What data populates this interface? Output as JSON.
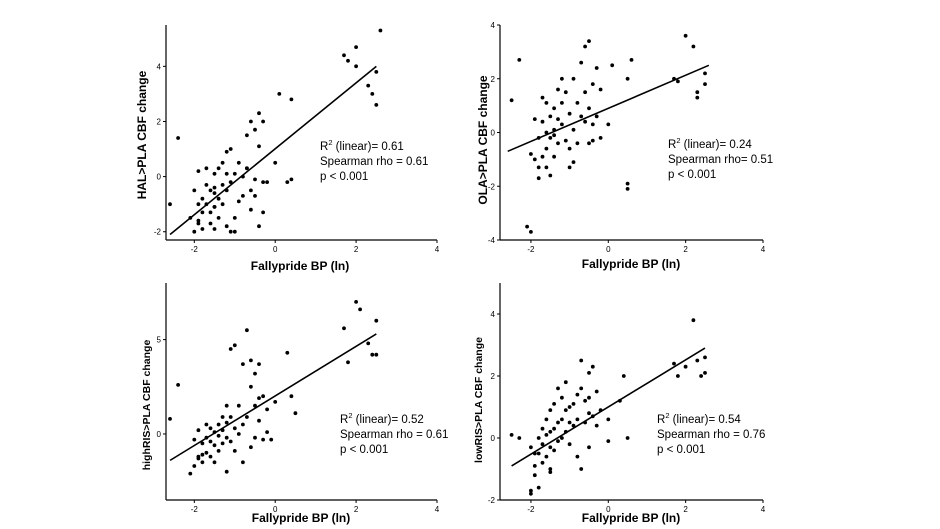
{
  "chart_data": [
    {
      "type": "scatter",
      "id": "hal",
      "xlabel": "Fallypride BP (ln)",
      "ylabel": "HAL>PLA CBF change",
      "xlim": [
        -2.7,
        4
      ],
      "ylim": [
        -2.3,
        5.5
      ],
      "xticks": [
        -2,
        0,
        2,
        4
      ],
      "yticks": [
        -2,
        0,
        2,
        4
      ],
      "stats": {
        "r2_label": "R",
        "r2_exp": "2",
        "r2_rest": " (linear)= 0.61",
        "rho": "Spearman rho = 0.61",
        "p": "p < 0.001"
      },
      "fit": [
        [
          -2.6,
          -2.1
        ],
        [
          2.5,
          4.0
        ]
      ],
      "x": [
        -2.6,
        -2.4,
        -2.1,
        -2.0,
        -2.0,
        -1.9,
        -1.9,
        -1.9,
        -1.8,
        -1.8,
        -1.8,
        -1.7,
        -1.7,
        -1.7,
        -1.6,
        -1.6,
        -1.6,
        -1.5,
        -1.5,
        -1.5,
        -1.5,
        -1.4,
        -1.4,
        -1.4,
        -1.3,
        -1.3,
        -1.3,
        -1.2,
        -1.2,
        -1.2,
        -1.2,
        -1.1,
        -1.1,
        -1.0,
        -1.0,
        -1.0,
        -0.9,
        -0.9,
        -0.8,
        -0.8,
        -0.7,
        -0.7,
        -0.6,
        -0.6,
        -0.6,
        -0.5,
        -0.5,
        -0.5,
        -0.4,
        -0.4,
        -0.4,
        -0.3,
        -0.3,
        -0.2,
        0.0,
        0.1,
        0.3,
        0.4,
        0.4,
        1.7,
        1.8,
        2.0,
        2.0,
        2.3,
        2.4,
        2.5,
        2.5,
        2.6,
        -1.5,
        -1.9,
        -0.7,
        -1.5,
        -1.1,
        -0.3
      ],
      "y": [
        -1.0,
        1.4,
        -1.5,
        -2.0,
        -0.5,
        0.2,
        -1.0,
        -1.7,
        -0.8,
        -1.3,
        -1.9,
        -0.3,
        -1.0,
        0.3,
        -0.5,
        -1.3,
        -1.7,
        0.1,
        -0.6,
        -1.1,
        -1.9,
        0.3,
        -0.8,
        -1.5,
        0.5,
        -0.3,
        -1.0,
        0.9,
        0.1,
        -0.5,
        -1.8,
        1.0,
        -0.2,
        0.1,
        -1.5,
        -2.0,
        0.5,
        -0.9,
        0.0,
        -0.7,
        1.5,
        0.3,
        -0.5,
        -1.2,
        2.0,
        1.7,
        -0.1,
        -0.7,
        2.3,
        1.1,
        -1.8,
        2.0,
        -0.2,
        -0.2,
        0.5,
        3.0,
        -0.2,
        2.8,
        -0.1,
        4.4,
        4.2,
        4.0,
        4.7,
        3.3,
        3.0,
        3.8,
        2.6,
        5.3,
        -1.1,
        -1.6,
        0.3,
        -0.4,
        -2.0,
        -1.3
      ]
    },
    {
      "type": "scatter",
      "id": "ola",
      "xlabel": "Fallypride BP (ln)",
      "ylabel": "OLA>PLA CBF change",
      "xlim": [
        -2.8,
        4
      ],
      "ylim": [
        -4,
        4
      ],
      "xticks": [
        -2,
        0,
        2,
        4
      ],
      "yticks": [
        -4,
        -2,
        0,
        2,
        4
      ],
      "stats": {
        "r2_label": "R",
        "r2_exp": "2",
        "r2_rest": " (linear)= 0.24",
        "rho": "Spearman rho= 0.51",
        "p": "p < 0.001"
      },
      "fit": [
        [
          -2.6,
          -0.7
        ],
        [
          2.6,
          2.5
        ]
      ],
      "x": [
        -2.5,
        -2.3,
        -2.1,
        -2.0,
        -2.0,
        -1.9,
        -1.9,
        -1.8,
        -1.8,
        -1.8,
        -1.7,
        -1.7,
        -1.7,
        -1.6,
        -1.6,
        -1.6,
        -1.5,
        -1.5,
        -1.5,
        -1.4,
        -1.4,
        -1.4,
        -1.3,
        -1.3,
        -1.3,
        -1.2,
        -1.2,
        -1.2,
        -1.1,
        -1.1,
        -1.0,
        -1.0,
        -1.0,
        -0.9,
        -0.9,
        -0.8,
        -0.8,
        -0.7,
        -0.7,
        -0.6,
        -0.6,
        -0.6,
        -0.5,
        -0.5,
        -0.4,
        -0.4,
        -0.4,
        -0.3,
        -0.3,
        -0.2,
        -0.2,
        0.0,
        0.1,
        0.5,
        0.5,
        0.5,
        0.6,
        1.7,
        1.8,
        2.0,
        2.2,
        2.3,
        2.3,
        2.5,
        2.5,
        -1.6,
        -1.4,
        -0.9,
        -0.5
      ],
      "y": [
        1.2,
        2.7,
        -3.5,
        -3.7,
        -0.8,
        0.5,
        -1.0,
        -0.2,
        -1.3,
        -1.7,
        1.3,
        0.4,
        -0.9,
        0.0,
        -0.6,
        -1.3,
        0.6,
        -0.2,
        -1.6,
        0.9,
        0.1,
        -0.9,
        1.6,
        0.5,
        -0.4,
        2.0,
        1.1,
        0.3,
        1.5,
        -0.3,
        0.7,
        -0.6,
        -1.3,
        2.0,
        0.1,
        1.1,
        -0.4,
        2.6,
        0.6,
        3.2,
        1.5,
        0.4,
        3.4,
        0.9,
        1.8,
        0.3,
        -0.3,
        2.4,
        0.6,
        1.6,
        -0.2,
        0.3,
        2.5,
        -1.9,
        -2.1,
        2.0,
        2.7,
        2.0,
        1.9,
        3.6,
        3.2,
        1.3,
        1.5,
        2.2,
        1.8,
        1.1,
        -0.1,
        -1.1,
        -0.4
      ]
    },
    {
      "type": "scatter",
      "id": "highris",
      "xlabel": "Fallypride BP (ln)",
      "ylabel": "highRIS>PLA CBF change",
      "xlim": [
        -2.7,
        4
      ],
      "ylim": [
        -3.5,
        8
      ],
      "xticks": [
        -2,
        0,
        2,
        4
      ],
      "yticks": [
        0,
        5
      ],
      "stats": {
        "r2_label": "R",
        "r2_exp": "2",
        "r2_rest": " (linear)= 0.52",
        "rho": "Spearman rho = 0.61",
        "p": "p < 0.001"
      },
      "fit": [
        [
          -2.6,
          -1.4
        ],
        [
          2.5,
          5.3
        ]
      ],
      "x": [
        -2.6,
        -2.4,
        -2.1,
        -2.0,
        -2.0,
        -1.9,
        -1.9,
        -1.8,
        -1.8,
        -1.8,
        -1.7,
        -1.7,
        -1.7,
        -1.6,
        -1.6,
        -1.6,
        -1.5,
        -1.5,
        -1.5,
        -1.4,
        -1.4,
        -1.4,
        -1.3,
        -1.3,
        -1.3,
        -1.2,
        -1.2,
        -1.2,
        -1.1,
        -1.1,
        -1.1,
        -1.0,
        -1.0,
        -1.0,
        -0.9,
        -0.9,
        -0.8,
        -0.8,
        -0.7,
        -0.7,
        -0.6,
        -0.6,
        -0.6,
        -0.5,
        -0.5,
        -0.5,
        -0.4,
        -0.4,
        -0.4,
        -0.3,
        -0.3,
        -0.2,
        -0.1,
        0.0,
        0.3,
        0.4,
        0.5,
        1.7,
        1.8,
        2.0,
        2.1,
        2.3,
        2.4,
        2.5,
        2.5,
        -1.9,
        -1.2,
        -0.8,
        -0.2
      ],
      "y": [
        0.8,
        2.6,
        -2.1,
        -1.7,
        -0.3,
        0.2,
        -1.2,
        -0.5,
        -1.1,
        -1.5,
        0.5,
        -0.2,
        -1.0,
        0.3,
        -0.4,
        -1.2,
        0.1,
        -0.6,
        -1.5,
        0.5,
        -0.1,
        -0.9,
        0.9,
        0.2,
        -0.5,
        1.5,
        0.6,
        -0.2,
        4.5,
        0.9,
        -0.4,
        4.7,
        0.3,
        -0.9,
        1.5,
        0.0,
        3.7,
        0.5,
        5.5,
        0.9,
        3.9,
        2.5,
        -0.7,
        3.2,
        1.5,
        -0.2,
        3.7,
        1.9,
        0.7,
        2.0,
        -0.3,
        1.3,
        -0.3,
        1.7,
        4.3,
        2.0,
        1.1,
        5.6,
        3.8,
        7.0,
        6.6,
        4.8,
        4.2,
        6.0,
        4.2,
        -1.3,
        -2.0,
        -1.5,
        0.1
      ]
    },
    {
      "type": "scatter",
      "id": "lowris",
      "xlabel": "Fallypride BP (ln)",
      "ylabel": "lowRIS>PLA CBF change",
      "xlim": [
        -2.8,
        4
      ],
      "ylim": [
        -2,
        5
      ],
      "xticks": [
        -2,
        0,
        2,
        4
      ],
      "yticks": [
        -2,
        0,
        2,
        4
      ],
      "stats": {
        "r2_label": "R",
        "r2_exp": "2",
        "r2_rest": " (linear)= 0.54",
        "rho": "Spearman rho = 0.76",
        "p": "p < 0.001"
      },
      "fit": [
        [
          -2.5,
          -0.9
        ],
        [
          2.5,
          2.9
        ]
      ],
      "x": [
        -2.5,
        -2.3,
        -2.0,
        -2.0,
        -1.9,
        -1.9,
        -1.9,
        -1.8,
        -1.8,
        -1.8,
        -1.7,
        -1.7,
        -1.7,
        -1.6,
        -1.6,
        -1.6,
        -1.5,
        -1.5,
        -1.5,
        -1.5,
        -1.4,
        -1.4,
        -1.4,
        -1.3,
        -1.3,
        -1.3,
        -1.2,
        -1.2,
        -1.2,
        -1.1,
        -1.1,
        -1.1,
        -1.0,
        -1.0,
        -1.0,
        -0.9,
        -0.9,
        -0.8,
        -0.8,
        -0.7,
        -0.7,
        -0.7,
        -0.6,
        -0.6,
        -0.5,
        -0.5,
        -0.5,
        -0.4,
        -0.4,
        -0.3,
        -0.3,
        -0.2,
        0.0,
        0.0,
        0.3,
        0.4,
        0.5,
        1.7,
        1.8,
        2.0,
        2.2,
        2.3,
        2.4,
        2.5,
        2.5,
        -2.0,
        -1.5,
        -0.8,
        -0.5
      ],
      "y": [
        0.1,
        0.0,
        -1.7,
        -0.3,
        -0.5,
        -0.9,
        -1.2,
        0.0,
        -0.5,
        -1.6,
        0.3,
        -0.2,
        -0.8,
        0.6,
        0.1,
        -0.6,
        0.9,
        0.2,
        -0.3,
        -1.0,
        1.1,
        0.3,
        -0.4,
        1.6,
        0.5,
        -0.1,
        1.3,
        0.6,
        0.0,
        1.8,
        0.9,
        0.2,
        1.0,
        0.5,
        -0.2,
        1.1,
        0.4,
        1.4,
        0.6,
        2.5,
        1.6,
        -1.0,
        1.2,
        0.5,
        2.1,
        0.8,
        -0.3,
        2.3,
        0.7,
        1.5,
        0.4,
        0.9,
        0.6,
        -0.1,
        1.2,
        2.0,
        0.0,
        2.4,
        2.0,
        2.3,
        3.8,
        2.5,
        2.0,
        2.6,
        2.1,
        -1.8,
        -1.1,
        -0.6,
        1.3
      ]
    }
  ]
}
